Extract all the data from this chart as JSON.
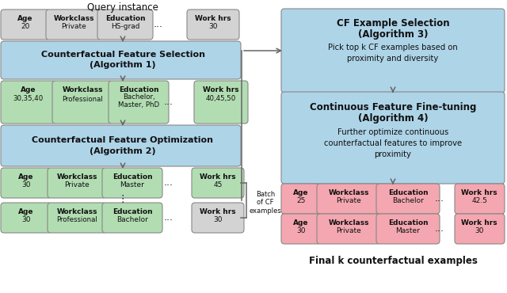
{
  "fig_width": 6.4,
  "fig_height": 3.7,
  "bg": "#ffffff",
  "gray": "#d3d3d3",
  "blue": "#aed4e8",
  "green": "#b2ddb2",
  "pink": "#f4a7b0",
  "edge": "#888888",
  "arr": "#666666",
  "query_title": "Query instance",
  "final_title": "Final k counterfactual examples",
  "batch_text": "Batch\nof CF\nexamples",
  "alg1_line1": "Counterfactual Feature Selection",
  "alg1_line2": "(Algorithm 1)",
  "alg2_line1": "Counterfactual Feature Optimization",
  "alg2_line2": "(Algorithm 2)",
  "alg3_line1": "CF Example Selection",
  "alg3_line2": "(Algorithm 3)",
  "alg3_line3": "Pick top k CF examples based on",
  "alg3_line4": "proximity and diversity",
  "alg4_line1": "Continuous Feature Fine-tuning",
  "alg4_line2": "(Algorithm 4)",
  "alg4_line3": "Further optimize continuous",
  "alg4_line4": "counterfactual features to improve",
  "alg4_line5": "proximity"
}
